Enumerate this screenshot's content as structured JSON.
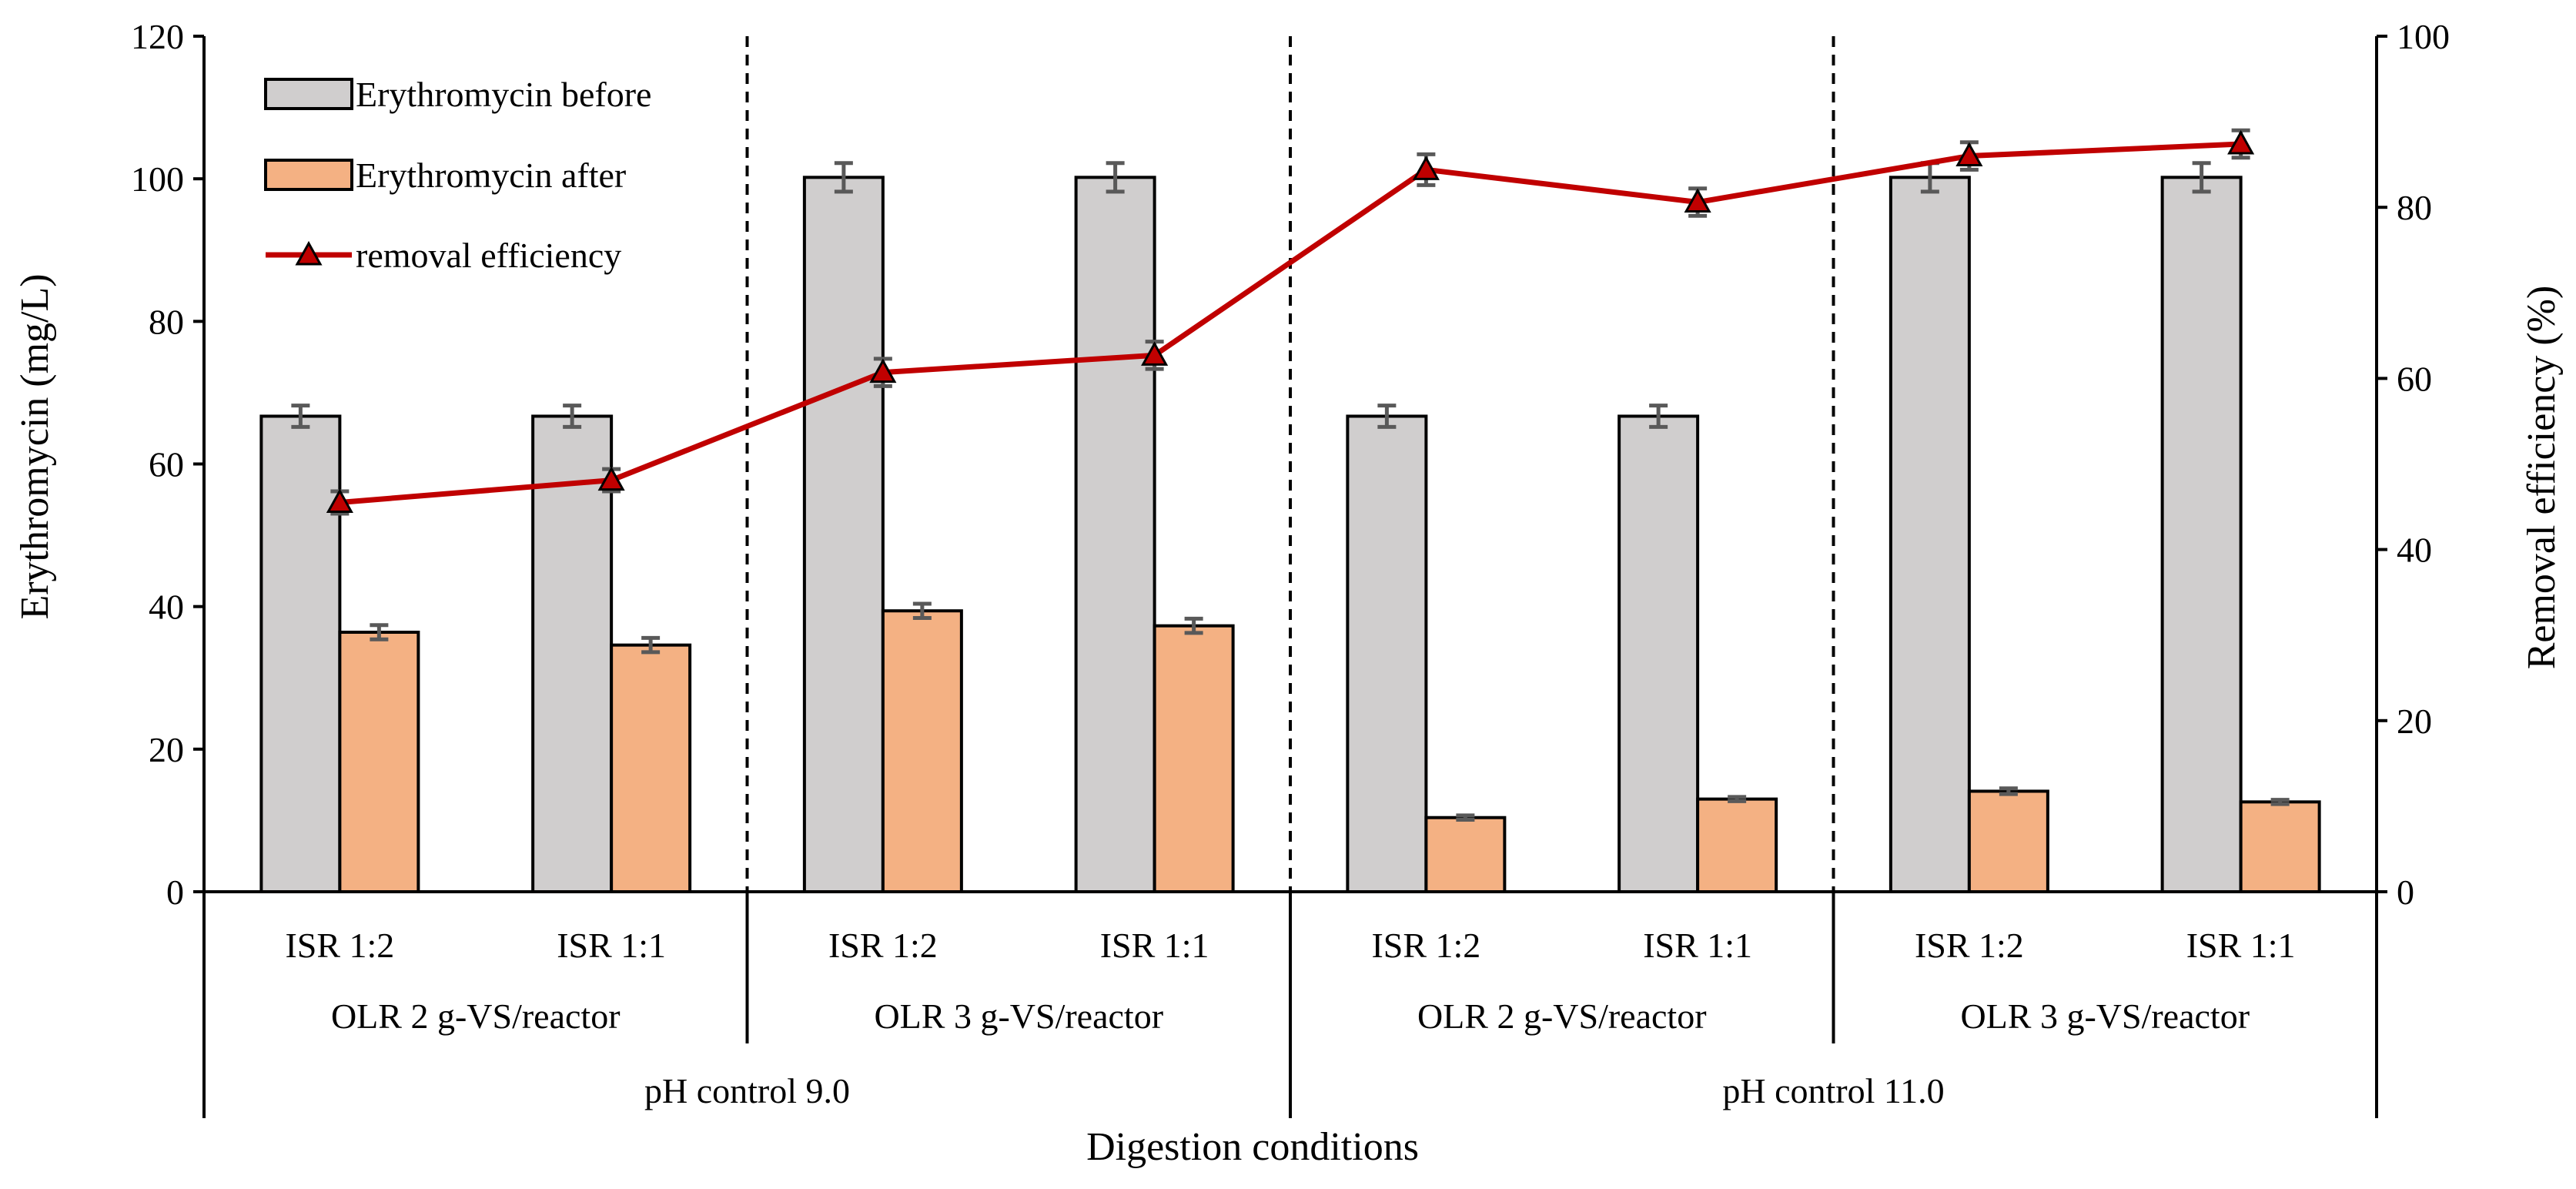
{
  "chart_data": {
    "type": "bar",
    "xlabel": "Digestion conditions",
    "ylabel": "Erythromycin (mg/L)",
    "y2label": "Removal efficiency (%)",
    "ylim": [
      0,
      120
    ],
    "y2lim": [
      0,
      100
    ],
    "yticks": [
      "0",
      "20",
      "40",
      "60",
      "80",
      "100",
      "120"
    ],
    "y2ticks": [
      "0",
      "20",
      "40",
      "60",
      "80",
      "100"
    ],
    "categories": [
      "ISR 1:2",
      "ISR 1:1",
      "ISR 1:2",
      "ISR 1:1",
      "ISR 1:2",
      "ISR 1:1",
      "ISR 1:2",
      "ISR 1:1"
    ],
    "group_labels": [
      "OLR 2 g-VS/reactor",
      "OLR 3 g-VS/reactor",
      "OLR 2 g-VS/reactor",
      "OLR 3 g-VS/reactor"
    ],
    "top_group_labels": [
      "pH control 9.0",
      "pH control 11.0"
    ],
    "series": [
      {
        "name": "Erythromycin before",
        "kind": "bar",
        "axis": "left",
        "color": "#d0cece",
        "values": [
          66.7,
          66.7,
          100.2,
          100.2,
          66.7,
          66.7,
          100.2,
          100.2
        ],
        "errors": [
          1.5,
          1.5,
          2.0,
          2.0,
          1.5,
          1.5,
          2.0,
          2.0
        ]
      },
      {
        "name": "Erythromycin after",
        "kind": "bar",
        "axis": "left",
        "color": "#f4b183",
        "values": [
          36.4,
          34.6,
          39.4,
          37.3,
          10.4,
          13.0,
          14.1,
          12.6
        ],
        "errors": [
          1.0,
          1.0,
          1.0,
          1.0,
          0.3,
          0.3,
          0.4,
          0.3
        ]
      },
      {
        "name": "removal efficiency",
        "kind": "line",
        "axis": "right",
        "color": "#c00000",
        "values": [
          45.5,
          48.1,
          60.7,
          62.7,
          84.4,
          80.6,
          86.0,
          87.4
        ],
        "errors": [
          1.3,
          1.3,
          1.6,
          1.6,
          1.8,
          1.6,
          1.6,
          1.6
        ]
      }
    ],
    "legend_position": "top-left"
  }
}
